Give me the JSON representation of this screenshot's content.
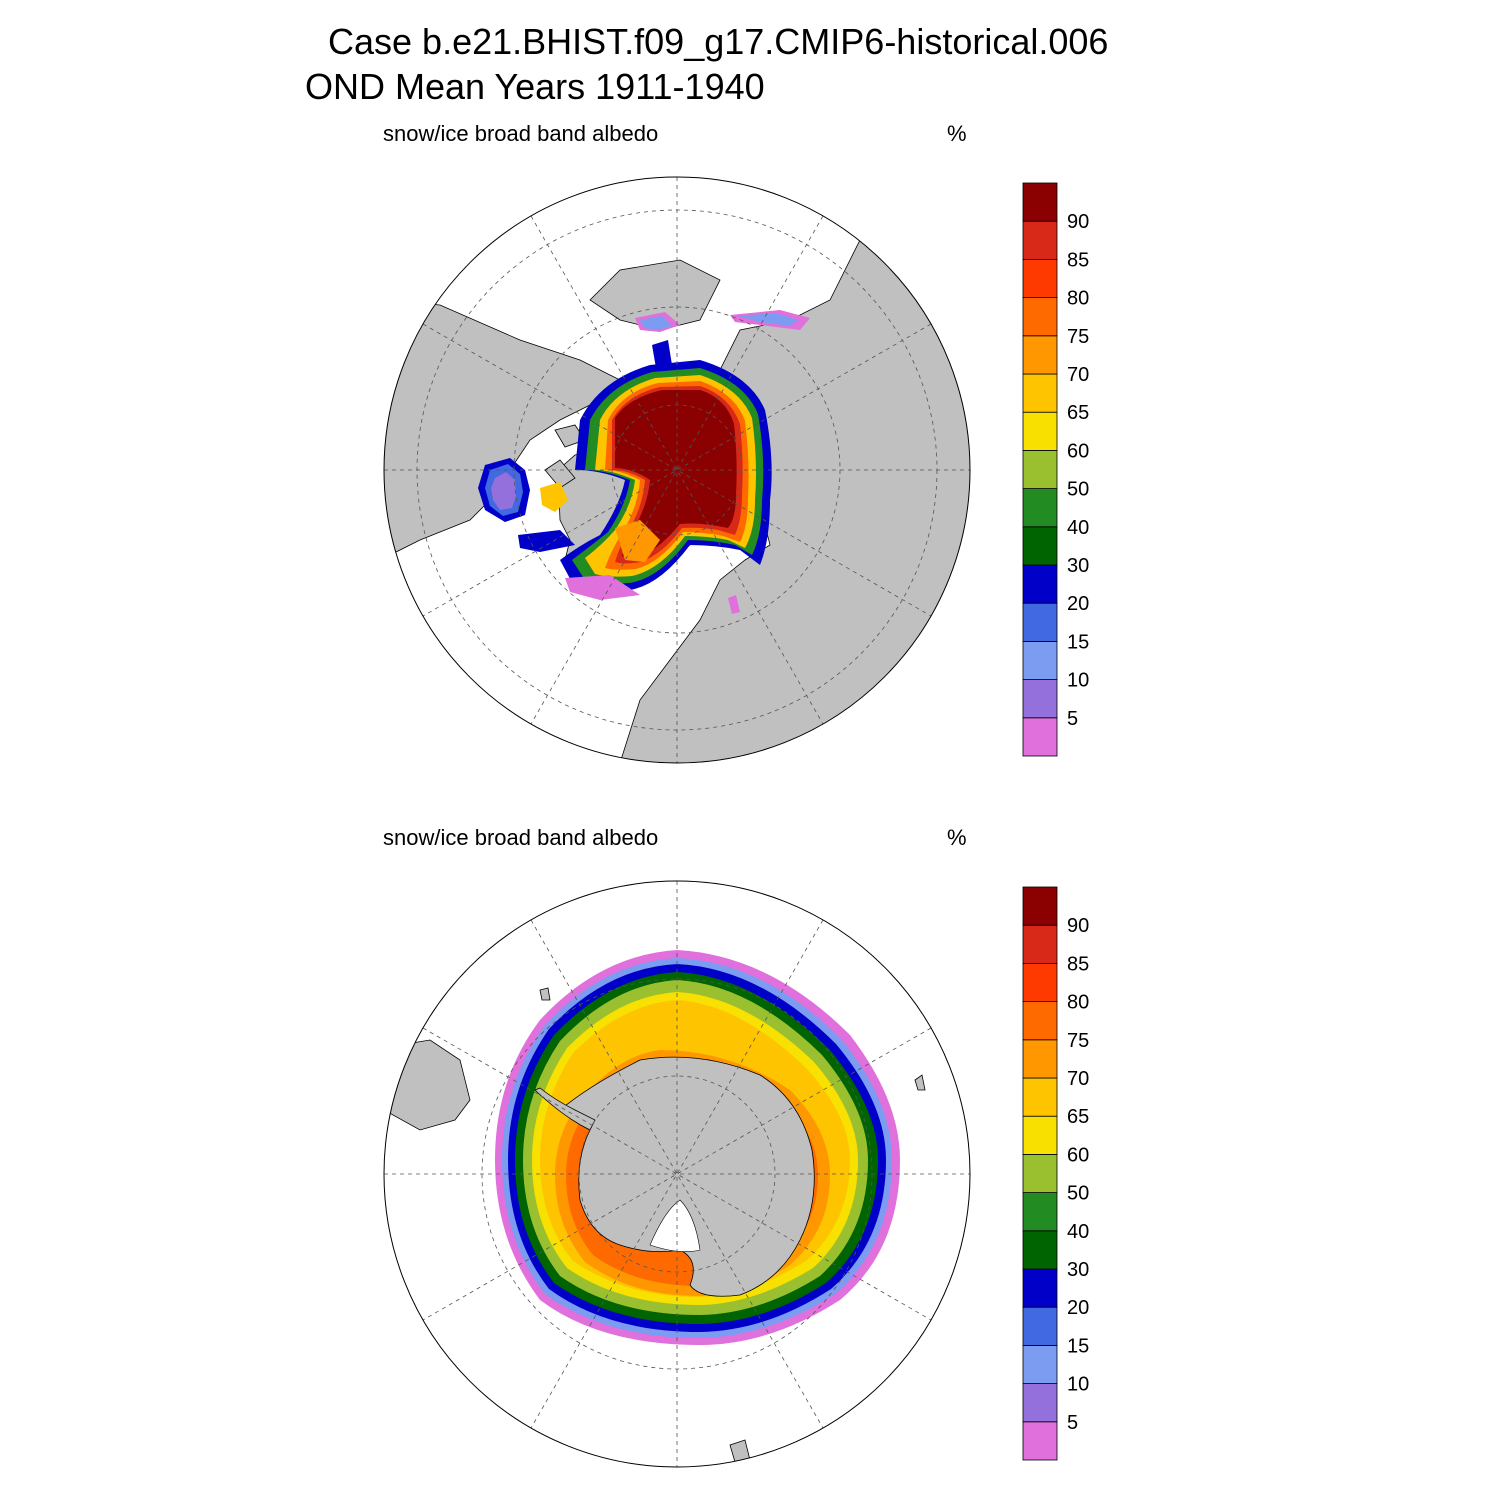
{
  "header": {
    "line1": "Case b.e21.BHIST.f09_g17.CMIP6-historical.006",
    "line2": "OND Mean   Years 1911-1940"
  },
  "panels": [
    {
      "id": "north",
      "hemisphere": "north",
      "label": "snow/ice broad band albedo",
      "units": "%"
    },
    {
      "id": "south",
      "hemisphere": "south",
      "label": "snow/ice broad band albedo",
      "units": "%"
    }
  ],
  "colorbar": {
    "labels": [
      "5",
      "10",
      "15",
      "20",
      "30",
      "40",
      "50",
      "60",
      "65",
      "70",
      "75",
      "80",
      "85",
      "90"
    ],
    "colors": [
      "#e070dc",
      "#9370db",
      "#7b9cf0",
      "#4169e1",
      "#0000c8",
      "#006400",
      "#228b22",
      "#9ac030",
      "#f8e000",
      "#ffc400",
      "#ff9800",
      "#ff6a00",
      "#ff3a00",
      "#d82818",
      "#8b0000"
    ]
  },
  "palette": {
    "land": "#c0c0c0",
    "ocean": "#ffffff",
    "grid": "#555555"
  }
}
